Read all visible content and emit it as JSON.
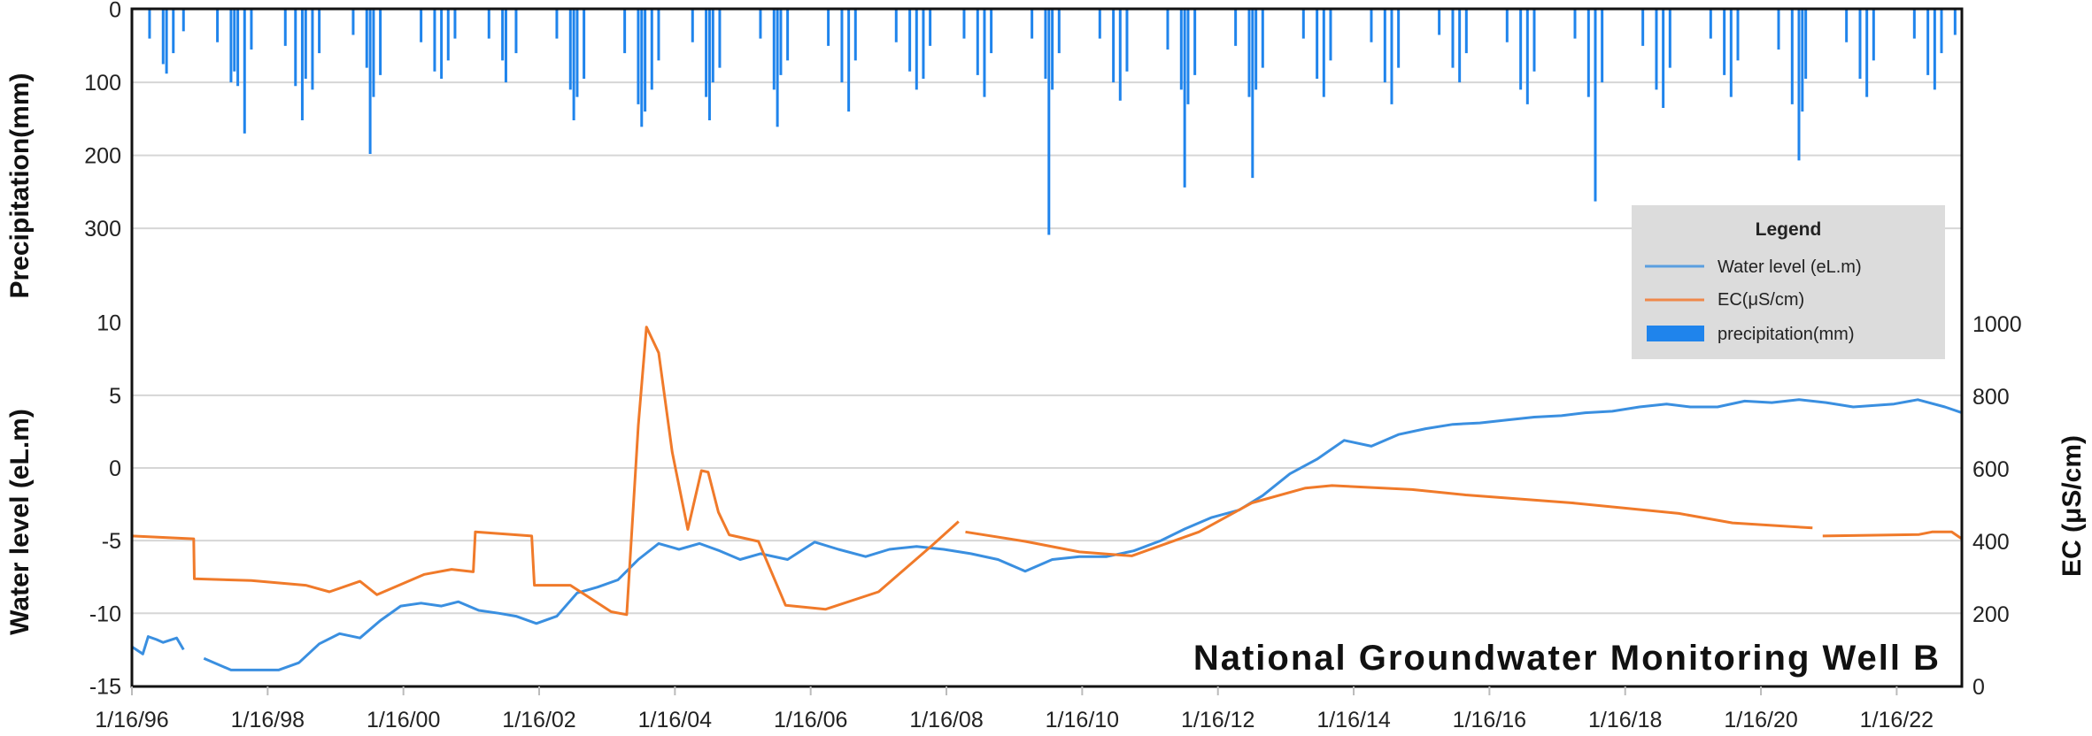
{
  "chart_data": {
    "type": "line",
    "title": "National Groundwater Monitoring Well B",
    "xlabel": "",
    "x_ticks": [
      "1/16/96",
      "1/16/98",
      "1/16/00",
      "1/16/02",
      "1/16/04",
      "1/16/06",
      "1/16/08",
      "1/16/10",
      "1/16/12",
      "1/16/14",
      "1/16/16",
      "1/16/18",
      "1/16/20",
      "1/16/22"
    ],
    "x_tick_years": [
      1996.04,
      1998.04,
      2000.04,
      2002.04,
      2004.04,
      2006.04,
      2008.04,
      2010.04,
      2012.04,
      2014.04,
      2016.04,
      2018.04,
      2020.04,
      2022.04
    ],
    "xlim": [
      1996.04,
      2023.0
    ],
    "grid": true,
    "axes": {
      "precip": {
        "label": "Precipitation(mm)",
        "ticks": [
          "0",
          "100",
          "200",
          "300"
        ],
        "tick_values": [
          0,
          100,
          200,
          300
        ],
        "inverted": true
      },
      "water_level": {
        "label": "Water level (eL.m)",
        "ticks": [
          "10",
          "5",
          "0",
          "-5",
          "-10",
          "-15"
        ],
        "tick_values": [
          10,
          5,
          0,
          -5,
          -10,
          -15
        ],
        "ylim": [
          -15,
          10
        ]
      },
      "ec": {
        "label": "EC (μS/cm)",
        "ticks": [
          "1000",
          "800",
          "600",
          "400",
          "200",
          "0"
        ],
        "tick_values": [
          1000,
          800,
          600,
          400,
          200,
          0
        ],
        "ylim": [
          0,
          1000
        ]
      }
    },
    "legend": {
      "title": "Legend",
      "placement": "right",
      "items": [
        {
          "label": "Water level (eL.m)",
          "color": "#3a8fe0",
          "kind": "line"
        },
        {
          "label": "EC(μS/cm)",
          "color": "#f07a2a",
          "kind": "line"
        },
        {
          "label": "precipitation(mm)",
          "color": "#1f84ec",
          "kind": "bar"
        }
      ]
    },
    "series": [
      {
        "name": "Water level (eL.m)",
        "axis": "water_level",
        "color": "#3a8fe0",
        "segments": [
          [
            [
              1996.04,
              -12.3
            ],
            [
              1996.2,
              -12.8
            ],
            [
              1996.28,
              -11.6
            ],
            [
              1996.4,
              -11.8
            ],
            [
              1996.5,
              -12.0
            ],
            [
              1996.7,
              -11.7
            ],
            [
              1996.8,
              -12.5
            ]
          ],
          [
            [
              1997.1,
              -13.1
            ],
            [
              1997.5,
              -13.9
            ],
            [
              1997.9,
              -13.9
            ],
            [
              1998.2,
              -13.9
            ],
            [
              1998.5,
              -13.4
            ],
            [
              1998.8,
              -12.1
            ],
            [
              1999.1,
              -11.4
            ],
            [
              1999.4,
              -11.7
            ],
            [
              1999.7,
              -10.5
            ],
            [
              2000.0,
              -9.5
            ],
            [
              2000.3,
              -9.3
            ],
            [
              2000.6,
              -9.5
            ],
            [
              2000.85,
              -9.2
            ],
            [
              2001.15,
              -9.8
            ],
            [
              2001.45,
              -10.0
            ],
            [
              2001.7,
              -10.2
            ],
            [
              2002.0,
              -10.7
            ],
            [
              2002.3,
              -10.2
            ],
            [
              2002.6,
              -8.6
            ],
            [
              2002.9,
              -8.2
            ],
            [
              2003.2,
              -7.7
            ],
            [
              2003.5,
              -6.3
            ],
            [
              2003.8,
              -5.2
            ],
            [
              2004.1,
              -5.6
            ],
            [
              2004.4,
              -5.2
            ],
            [
              2004.7,
              -5.7
            ],
            [
              2005.0,
              -6.3
            ],
            [
              2005.3,
              -5.9
            ],
            [
              2005.7,
              -6.3
            ],
            [
              2006.1,
              -5.1
            ],
            [
              2006.45,
              -5.6
            ],
            [
              2006.85,
              -6.1
            ],
            [
              2007.2,
              -5.6
            ],
            [
              2007.6,
              -5.4
            ],
            [
              2008.0,
              -5.6
            ],
            [
              2008.4,
              -5.9
            ],
            [
              2008.8,
              -6.3
            ],
            [
              2009.2,
              -7.1
            ],
            [
              2009.6,
              -6.3
            ],
            [
              2010.0,
              -6.1
            ],
            [
              2010.4,
              -6.1
            ],
            [
              2010.8,
              -5.7
            ],
            [
              2011.2,
              -5.0
            ],
            [
              2011.55,
              -4.2
            ],
            [
              2011.95,
              -3.4
            ],
            [
              2012.35,
              -2.9
            ],
            [
              2012.7,
              -1.9
            ],
            [
              2013.1,
              -0.4
            ],
            [
              2013.5,
              0.6
            ],
            [
              2013.9,
              1.9
            ],
            [
              2014.3,
              1.5
            ],
            [
              2014.7,
              2.3
            ],
            [
              2015.1,
              2.7
            ],
            [
              2015.5,
              3.0
            ],
            [
              2015.9,
              3.1
            ],
            [
              2016.3,
              3.3
            ],
            [
              2016.7,
              3.5
            ],
            [
              2017.1,
              3.6
            ],
            [
              2017.45,
              3.8
            ],
            [
              2017.85,
              3.9
            ],
            [
              2018.25,
              4.2
            ],
            [
              2018.65,
              4.4
            ],
            [
              2019.0,
              4.2
            ],
            [
              2019.4,
              4.2
            ],
            [
              2019.8,
              4.6
            ],
            [
              2020.2,
              4.5
            ],
            [
              2020.6,
              4.7
            ],
            [
              2021.0,
              4.5
            ],
            [
              2021.4,
              4.2
            ],
            [
              2022.0,
              4.4
            ],
            [
              2022.35,
              4.7
            ],
            [
              2022.75,
              4.2
            ],
            [
              2023.0,
              3.8
            ]
          ]
        ]
      },
      {
        "name": "EC(μS/cm)",
        "axis": "ec",
        "color": "#f07a2a",
        "segments": [
          [
            [
              1996.04,
              415
            ],
            [
              1996.6,
              410
            ],
            [
              1996.95,
              407
            ],
            [
              1996.96,
              297
            ],
            [
              1997.8,
              292
            ],
            [
              1998.6,
              279
            ],
            [
              1998.95,
              261
            ],
            [
              1999.4,
              290
            ],
            [
              1999.65,
              253
            ],
            [
              2000.35,
              309
            ],
            [
              2000.75,
              323
            ],
            [
              2001.07,
              316
            ],
            [
              2001.1,
              426
            ],
            [
              2001.93,
              415
            ],
            [
              2001.97,
              279
            ],
            [
              2002.5,
              279
            ],
            [
              2003.1,
              206
            ],
            [
              2003.33,
              198
            ],
            [
              2003.5,
              720
            ],
            [
              2003.62,
              991
            ],
            [
              2003.8,
              920
            ],
            [
              2004.0,
              646
            ],
            [
              2004.23,
              433
            ],
            [
              2004.43,
              595
            ],
            [
              2004.53,
              591
            ],
            [
              2004.68,
              481
            ],
            [
              2004.84,
              418
            ],
            [
              2005.27,
              400
            ],
            [
              2005.67,
              224
            ],
            [
              2006.26,
              213
            ],
            [
              2007.04,
              261
            ],
            [
              2007.83,
              389
            ],
            [
              2008.22,
              455
            ]
          ],
          [
            [
              2008.32,
              426
            ],
            [
              2009.2,
              400
            ],
            [
              2010.0,
              371
            ],
            [
              2010.77,
              360
            ],
            [
              2011.76,
              426
            ],
            [
              2012.54,
              506
            ],
            [
              2013.33,
              547
            ],
            [
              2013.72,
              554
            ],
            [
              2014.9,
              543
            ],
            [
              2015.69,
              528
            ],
            [
              2017.26,
              506
            ],
            [
              2018.83,
              477
            ],
            [
              2019.62,
              451
            ],
            [
              2020.8,
              437
            ]
          ],
          [
            [
              2020.95,
              415
            ],
            [
              2022.37,
              419
            ],
            [
              2022.56,
              426
            ],
            [
              2022.85,
              426
            ],
            [
              2023.0,
              407
            ]
          ]
        ]
      }
    ],
    "precipitation": {
      "name": "precipitation(mm)",
      "axis": "precip",
      "color": "#1f84ec",
      "values": [
        [
          1996.3,
          40
        ],
        [
          1996.5,
          75
        ],
        [
          1996.55,
          88
        ],
        [
          1996.65,
          60
        ],
        [
          1996.8,
          30
        ],
        [
          1997.3,
          45
        ],
        [
          1997.5,
          100
        ],
        [
          1997.55,
          85
        ],
        [
          1997.6,
          105
        ],
        [
          1997.7,
          170
        ],
        [
          1997.8,
          55
        ],
        [
          1998.3,
          50
        ],
        [
          1998.45,
          105
        ],
        [
          1998.55,
          152
        ],
        [
          1998.6,
          95
        ],
        [
          1998.7,
          110
        ],
        [
          1998.8,
          60
        ],
        [
          1999.3,
          35
        ],
        [
          1999.5,
          80
        ],
        [
          1999.55,
          198
        ],
        [
          1999.6,
          120
        ],
        [
          1999.7,
          90
        ],
        [
          2000.3,
          45
        ],
        [
          2000.5,
          85
        ],
        [
          2000.6,
          95
        ],
        [
          2000.7,
          70
        ],
        [
          2000.8,
          40
        ],
        [
          2001.3,
          40
        ],
        [
          2001.5,
          70
        ],
        [
          2001.55,
          100
        ],
        [
          2001.7,
          60
        ],
        [
          2002.3,
          40
        ],
        [
          2002.5,
          110
        ],
        [
          2002.55,
          152
        ],
        [
          2002.6,
          120
        ],
        [
          2002.7,
          95
        ],
        [
          2003.3,
          60
        ],
        [
          2003.5,
          130
        ],
        [
          2003.55,
          161
        ],
        [
          2003.6,
          140
        ],
        [
          2003.7,
          110
        ],
        [
          2003.8,
          70
        ],
        [
          2004.3,
          45
        ],
        [
          2004.5,
          120
        ],
        [
          2004.55,
          152
        ],
        [
          2004.6,
          100
        ],
        [
          2004.7,
          80
        ],
        [
          2005.3,
          40
        ],
        [
          2005.5,
          110
        ],
        [
          2005.55,
          161
        ],
        [
          2005.6,
          90
        ],
        [
          2005.7,
          70
        ],
        [
          2006.3,
          50
        ],
        [
          2006.5,
          100
        ],
        [
          2006.6,
          140
        ],
        [
          2006.7,
          70
        ],
        [
          2007.3,
          45
        ],
        [
          2007.5,
          85
        ],
        [
          2007.6,
          110
        ],
        [
          2007.7,
          95
        ],
        [
          2007.8,
          50
        ],
        [
          2008.3,
          40
        ],
        [
          2008.5,
          90
        ],
        [
          2008.6,
          120
        ],
        [
          2008.7,
          60
        ],
        [
          2009.3,
          40
        ],
        [
          2009.5,
          95
        ],
        [
          2009.55,
          309
        ],
        [
          2009.6,
          110
        ],
        [
          2009.7,
          60
        ],
        [
          2010.3,
          40
        ],
        [
          2010.5,
          100
        ],
        [
          2010.6,
          125
        ],
        [
          2010.7,
          85
        ],
        [
          2011.3,
          55
        ],
        [
          2011.5,
          110
        ],
        [
          2011.55,
          244
        ],
        [
          2011.6,
          130
        ],
        [
          2011.7,
          90
        ],
        [
          2012.3,
          50
        ],
        [
          2012.5,
          120
        ],
        [
          2012.55,
          231
        ],
        [
          2012.6,
          110
        ],
        [
          2012.7,
          80
        ],
        [
          2013.3,
          40
        ],
        [
          2013.5,
          95
        ],
        [
          2013.6,
          120
        ],
        [
          2013.7,
          70
        ],
        [
          2014.3,
          45
        ],
        [
          2014.5,
          100
        ],
        [
          2014.6,
          130
        ],
        [
          2014.7,
          80
        ],
        [
          2015.3,
          35
        ],
        [
          2015.5,
          80
        ],
        [
          2015.6,
          100
        ],
        [
          2015.7,
          60
        ],
        [
          2016.3,
          45
        ],
        [
          2016.5,
          110
        ],
        [
          2016.6,
          130
        ],
        [
          2016.7,
          85
        ],
        [
          2017.3,
          40
        ],
        [
          2017.5,
          120
        ],
        [
          2017.6,
          263
        ],
        [
          2017.7,
          100
        ],
        [
          2018.3,
          50
        ],
        [
          2018.5,
          110
        ],
        [
          2018.6,
          135
        ],
        [
          2018.7,
          80
        ],
        [
          2019.3,
          40
        ],
        [
          2019.5,
          90
        ],
        [
          2019.6,
          120
        ],
        [
          2019.7,
          70
        ],
        [
          2020.3,
          55
        ],
        [
          2020.5,
          130
        ],
        [
          2020.6,
          207
        ],
        [
          2020.65,
          140
        ],
        [
          2020.7,
          95
        ],
        [
          2021.3,
          45
        ],
        [
          2021.5,
          95
        ],
        [
          2021.6,
          120
        ],
        [
          2021.7,
          70
        ],
        [
          2022.3,
          40
        ],
        [
          2022.5,
          90
        ],
        [
          2022.6,
          110
        ],
        [
          2022.7,
          60
        ],
        [
          2022.9,
          35
        ]
      ]
    }
  }
}
